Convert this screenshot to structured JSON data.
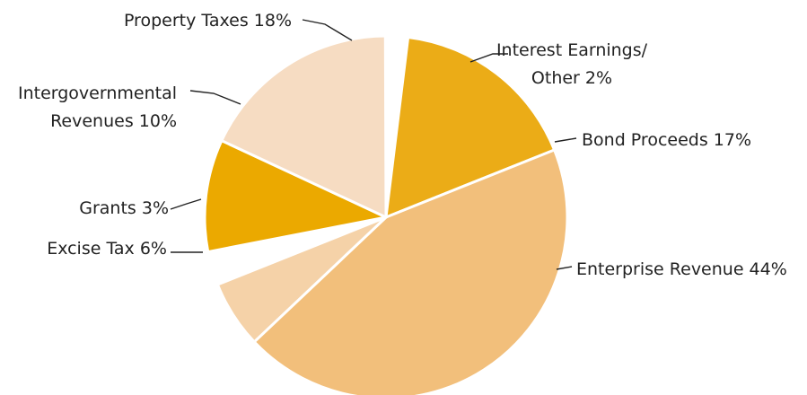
{
  "chart_data": {
    "type": "pie",
    "title": "",
    "slices": [
      {
        "key": "bond",
        "label_lines": [
          "Bond Proceeds 17%"
        ],
        "value": 17,
        "color": "#ebac17",
        "explode": false
      },
      {
        "key": "enterprise",
        "label_lines": [
          "Enterprise Revenue 44%"
        ],
        "value": 44,
        "color": "#f2bf7b",
        "explode": false
      },
      {
        "key": "excise",
        "label_lines": [
          "Excise Tax 6%"
        ],
        "value": 6,
        "color": "#f5d2a8",
        "explode": false
      },
      {
        "key": "grants",
        "label_lines": [
          "Grants 3%"
        ],
        "value": 3,
        "color": "#ffffff",
        "explode": true
      },
      {
        "key": "intergov",
        "label_lines": [
          "Intergovernmental",
          "Revenues 10%"
        ],
        "value": 10,
        "color": "#eba900",
        "explode": false
      },
      {
        "key": "property",
        "label_lines": [
          "Property Taxes 18%"
        ],
        "value": 18,
        "color": "#f6dcc2",
        "explode": false
      },
      {
        "key": "interest",
        "label_lines": [
          "Interest Earnings/",
          "Other 2%"
        ],
        "value": 2,
        "color": "#ffffff",
        "explode": true
      }
    ]
  }
}
